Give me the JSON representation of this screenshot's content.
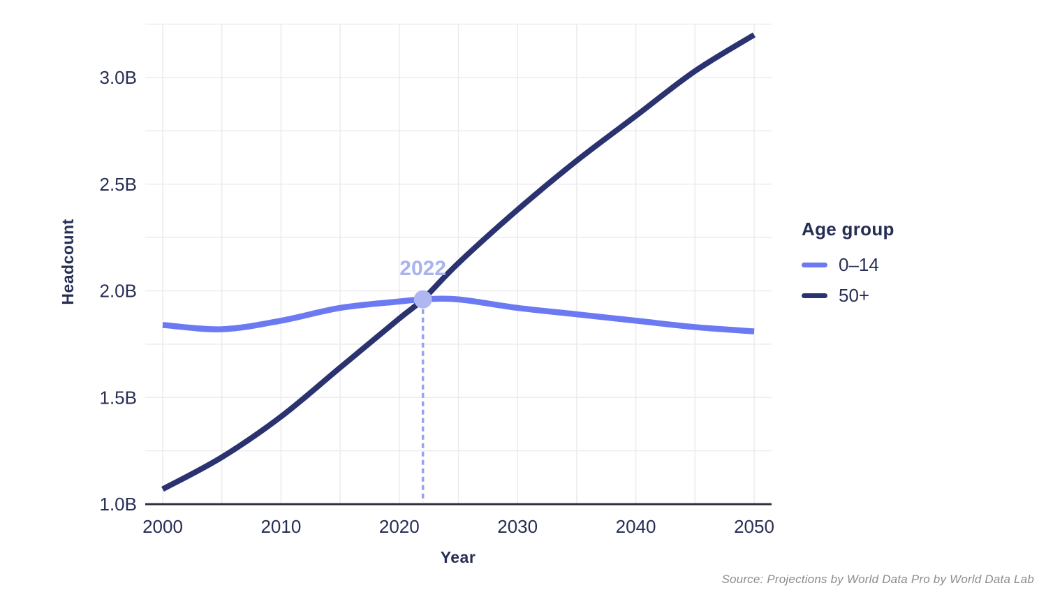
{
  "chart_data": {
    "type": "line",
    "title": "",
    "xlabel": "Year",
    "ylabel": "Headcount",
    "x_ticks": [
      {
        "year": 2000,
        "label": "2000"
      },
      {
        "year": 2010,
        "label": "2010"
      },
      {
        "year": 2020,
        "label": "2020"
      },
      {
        "year": 2030,
        "label": "2030"
      },
      {
        "year": 2040,
        "label": "2040"
      },
      {
        "year": 2050,
        "label": "2050"
      }
    ],
    "y_ticks": [
      {
        "value": 1.0,
        "label": "1.0B"
      },
      {
        "value": 1.5,
        "label": "1.5B"
      },
      {
        "value": 2.0,
        "label": "2.0B"
      },
      {
        "value": 2.5,
        "label": "2.5B"
      },
      {
        "value": 3.0,
        "label": "3.0B"
      }
    ],
    "xlim": [
      1998.5,
      2051.5
    ],
    "ylim": [
      1.0,
      3.27
    ],
    "x_grid_step_years": 5,
    "y_grid_step_billions": 0.25,
    "grid": true,
    "units": "billions",
    "series": [
      {
        "name": "0–14",
        "color": "#6B7AF2",
        "x": [
          2000,
          2005,
          2010,
          2015,
          2020,
          2022,
          2025,
          2030,
          2035,
          2040,
          2045,
          2050
        ],
        "values": [
          1.84,
          1.82,
          1.86,
          1.92,
          1.95,
          1.96,
          1.96,
          1.92,
          1.89,
          1.86,
          1.83,
          1.81
        ]
      },
      {
        "name": "50+",
        "color": "#2A326F",
        "x": [
          2000,
          2005,
          2010,
          2015,
          2020,
          2022,
          2025,
          2030,
          2035,
          2040,
          2045,
          2050
        ],
        "values": [
          1.07,
          1.22,
          1.41,
          1.64,
          1.87,
          1.96,
          2.13,
          2.38,
          2.61,
          2.82,
          3.03,
          3.2
        ]
      }
    ],
    "annotation": {
      "label": "2022",
      "year": 2022,
      "value": 1.96,
      "dot_color": "#AEB7F1",
      "dash_color": "#96A3F0",
      "text_color": "#A9B3F0"
    },
    "legend": {
      "title": "Age group",
      "position": "right"
    },
    "source": "Source: Projections by World Data Pro by World Data Lab"
  },
  "styles": {
    "text_color": "#272E54",
    "grid_color": "#ECECF0",
    "axis_color": "#30313C",
    "source_color": "#8C8C8C",
    "background": "#FFFFFF"
  }
}
